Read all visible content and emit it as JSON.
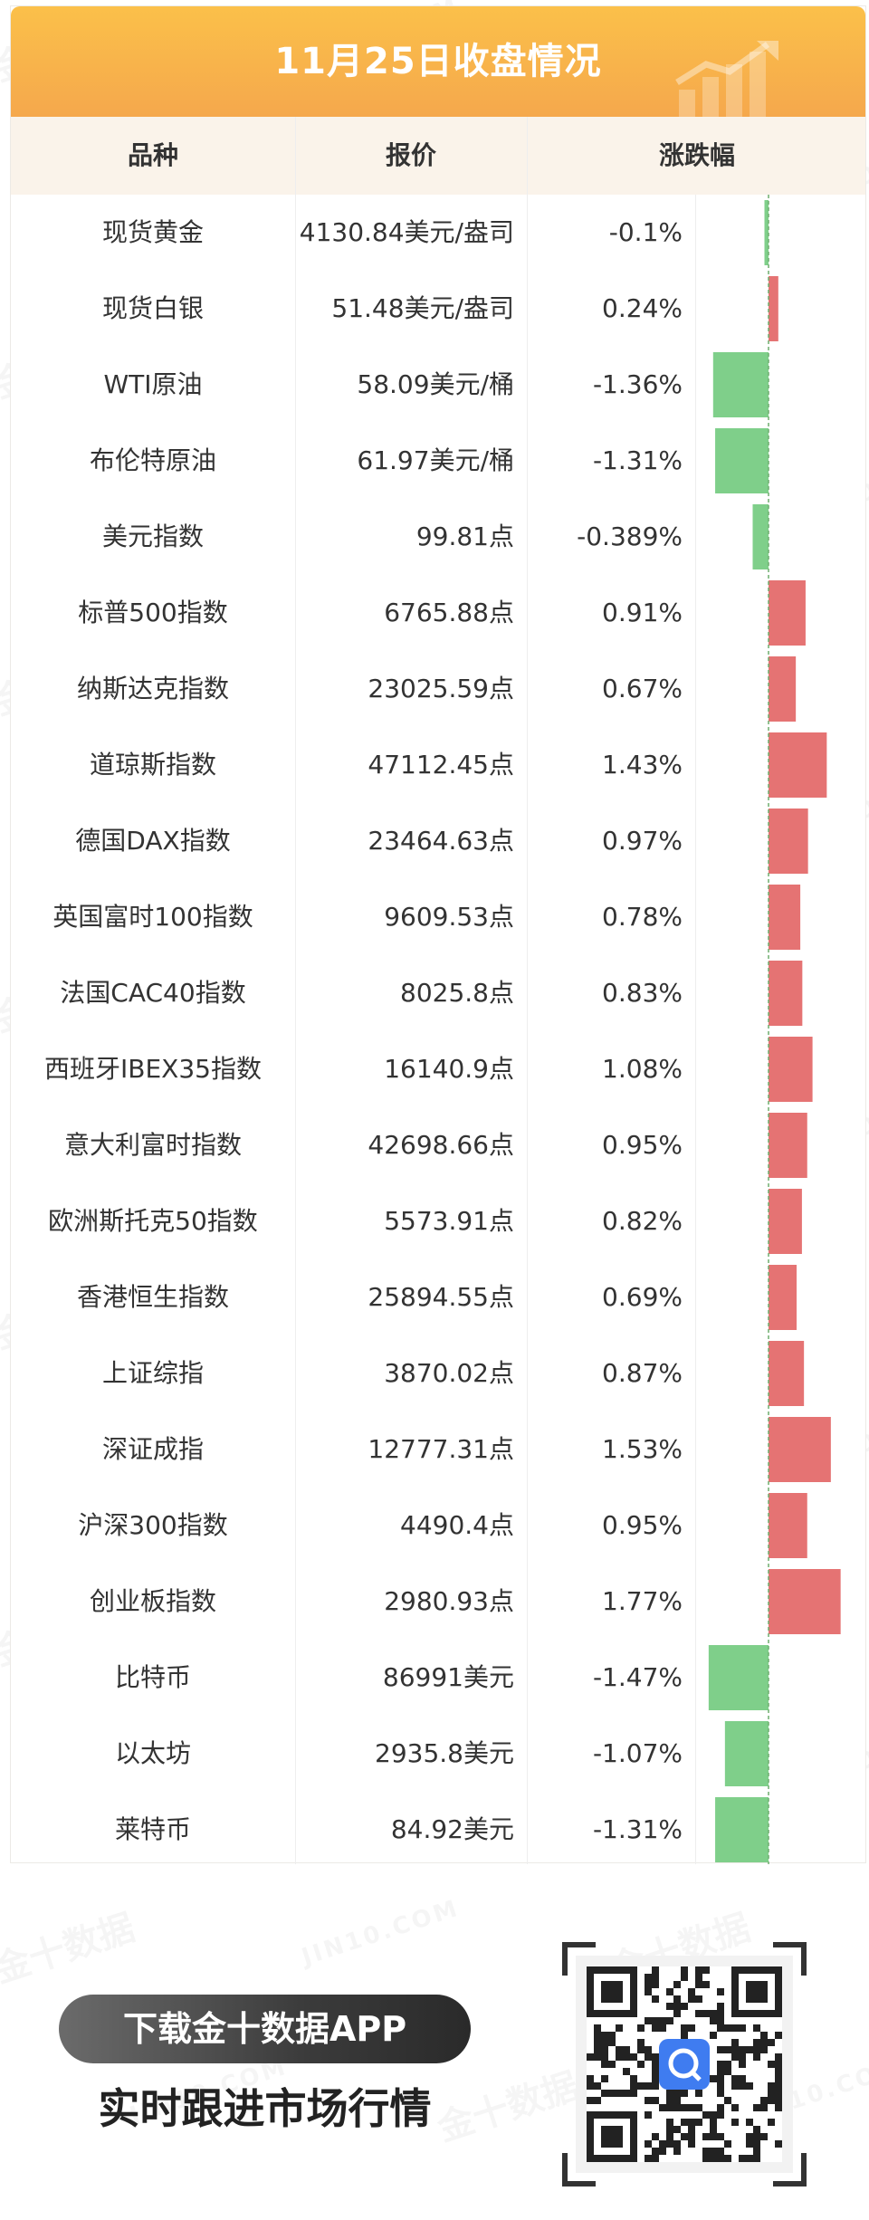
{
  "header": {
    "title": "11月25日收盘情况",
    "col_name": "品种",
    "col_price": "报价",
    "col_change": "涨跌幅"
  },
  "watermark": {
    "cn": "金十数据",
    "en": "JIN10.COM"
  },
  "colors": {
    "up": "#e57373",
    "down": "#7fcf8a",
    "title_bg": "#f5a84c",
    "header_bg": "#faf3ea"
  },
  "chart_data": {
    "type": "bar",
    "orientation": "horizontal",
    "categories": [
      "现货黄金",
      "现货白银",
      "WTI原油",
      "布伦特原油",
      "美元指数",
      "标普500指数",
      "纳斯达克指数",
      "道琼斯指数",
      "德国DAX指数",
      "英国富时100指数",
      "法国CAC40指数",
      "西班牙IBEX35指数",
      "意大利富时指数",
      "欧洲斯托克50指数",
      "香港恒生指数",
      "上证综指",
      "深证成指",
      "沪深300指数",
      "创业板指数",
      "比特币",
      "以太坊",
      "莱特币"
    ],
    "values": [
      -0.1,
      0.24,
      -1.36,
      -1.31,
      -0.389,
      0.91,
      0.67,
      1.43,
      0.97,
      0.78,
      0.83,
      1.08,
      0.95,
      0.82,
      0.69,
      0.87,
      1.53,
      0.95,
      1.77,
      -1.47,
      -1.07,
      -1.31
    ],
    "xlim": [
      -1.47,
      1.77
    ]
  },
  "rows": [
    {
      "name": "现货黄金",
      "price": "4130.84美元/盎司",
      "change": "-0.1%"
    },
    {
      "name": "现货白银",
      "price": "51.48美元/盎司",
      "change": "0.24%"
    },
    {
      "name": "WTI原油",
      "price": "58.09美元/桶",
      "change": "-1.36%"
    },
    {
      "name": "布伦特原油",
      "price": "61.97美元/桶",
      "change": "-1.31%"
    },
    {
      "name": "美元指数",
      "price": "99.81点",
      "change": "-0.389%"
    },
    {
      "name": "标普500指数",
      "price": "6765.88点",
      "change": "0.91%"
    },
    {
      "name": "纳斯达克指数",
      "price": "23025.59点",
      "change": "0.67%"
    },
    {
      "name": "道琼斯指数",
      "price": "47112.45点",
      "change": "1.43%"
    },
    {
      "name": "德国DAX指数",
      "price": "23464.63点",
      "change": "0.97%"
    },
    {
      "name": "英国富时100指数",
      "price": "9609.53点",
      "change": "0.78%"
    },
    {
      "name": "法国CAC40指数",
      "price": "8025.8点",
      "change": "0.83%"
    },
    {
      "name": "西班牙IBEX35指数",
      "price": "16140.9点",
      "change": "1.08%"
    },
    {
      "name": "意大利富时指数",
      "price": "42698.66点",
      "change": "0.95%"
    },
    {
      "name": "欧洲斯托克50指数",
      "price": "5573.91点",
      "change": "0.82%"
    },
    {
      "name": "香港恒生指数",
      "price": "25894.55点",
      "change": "0.69%"
    },
    {
      "name": "上证综指",
      "price": "3870.02点",
      "change": "0.87%"
    },
    {
      "name": "深证成指",
      "price": "12777.31点",
      "change": "1.53%"
    },
    {
      "name": "沪深300指数",
      "price": "4490.4点",
      "change": "0.95%"
    },
    {
      "name": "创业板指数",
      "price": "2980.93点",
      "change": "1.77%"
    },
    {
      "name": "比特币",
      "price": "86991美元",
      "change": "-1.47%"
    },
    {
      "name": "以太坊",
      "price": "2935.8美元",
      "change": "-1.07%"
    },
    {
      "name": "莱特币",
      "price": "84.92美元",
      "change": "-1.31%"
    }
  ],
  "promo": {
    "download_label": "下载金十数据APP",
    "slogan": "实时跟进市场行情",
    "qr_icon": "qr-code-icon"
  }
}
